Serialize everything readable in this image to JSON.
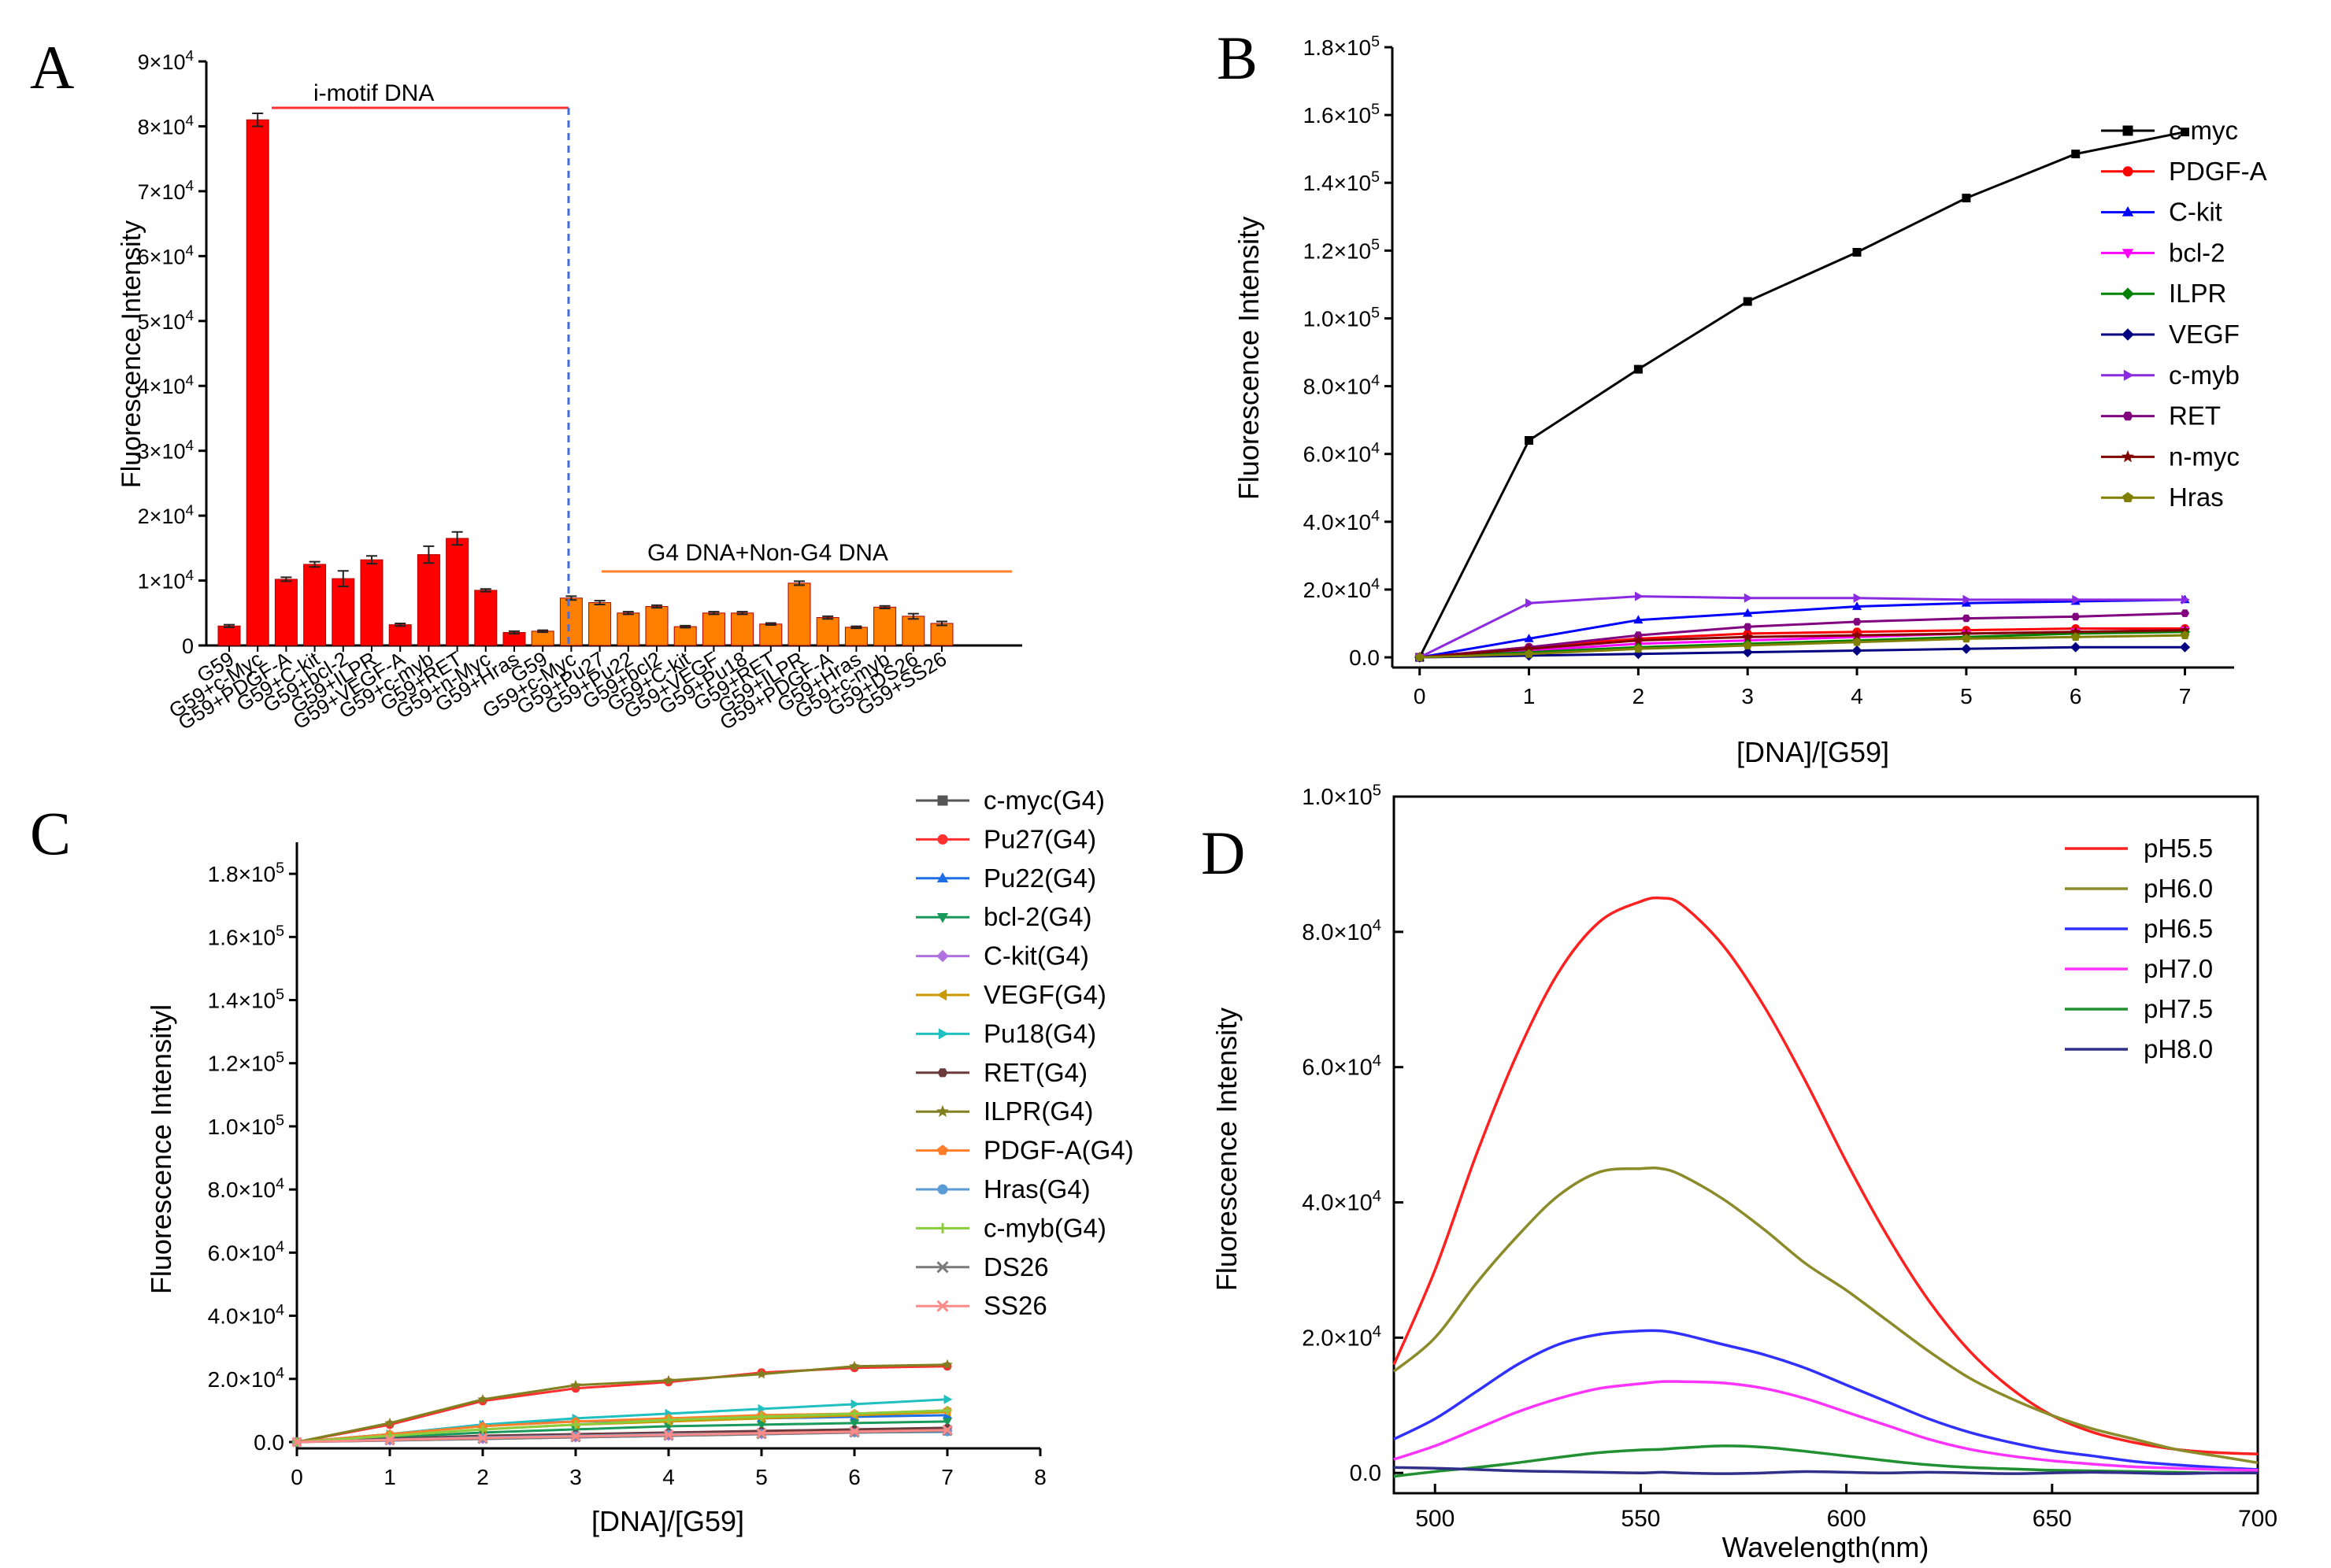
{
  "panel_labels": [
    "A",
    "B",
    "C",
    "D"
  ],
  "colors": {
    "red_bar": "#ff0000",
    "orange_bar": "#ff8000",
    "line_red": "#ff3030",
    "line_orange": "#ff7f2a",
    "dashed_blue": "#3f6fe0"
  },
  "chart_data": [
    {
      "id": "A",
      "type": "bar",
      "ylabel": "Fluorescence Intensity",
      "ylim": [
        0,
        90000
      ],
      "yticks": [
        {
          "v": 0,
          "label": "0"
        },
        {
          "v": 10000,
          "label": "1×10⁴"
        },
        {
          "v": 20000,
          "label": "2×10⁴"
        },
        {
          "v": 30000,
          "label": "3×10⁴"
        },
        {
          "v": 40000,
          "label": "4×10⁴"
        },
        {
          "v": 50000,
          "label": "5×10⁴"
        },
        {
          "v": 60000,
          "label": "6×10⁴"
        },
        {
          "v": 70000,
          "label": "7×10⁴"
        },
        {
          "v": 80000,
          "label": "8×10⁴"
        },
        {
          "v": 90000,
          "label": "9×10⁴"
        }
      ],
      "annotations": [
        "i-motif DNA",
        "G4 DNA+Non-G4 DNA"
      ],
      "groups": [
        {
          "name": "i-motif DNA",
          "color": "#ff0000",
          "categories": [
            "G59",
            "G59+c-Myc",
            "G59+PDGF-A",
            "G59+C-kit",
            "G59+bcl-2",
            "G59+ILPR",
            "G59+VEGF-A",
            "G59+c-myb",
            "G59+RET",
            "G59+n-Myc",
            "G59+Hras"
          ],
          "values": [
            3000,
            81000,
            10200,
            12500,
            10300,
            13200,
            3200,
            14000,
            16500,
            8500,
            2000
          ],
          "errors": [
            200,
            1000,
            300,
            400,
            1200,
            600,
            200,
            1300,
            1000,
            200,
            200
          ]
        },
        {
          "name": "G4 DNA+Non-G4 DNA",
          "color": "#ff8000",
          "categories": [
            "G59",
            "G59+c-Myc",
            "G59+Pu27",
            "G59+Pu22",
            "G59+bcl2",
            "G59+C-kit",
            "G59+VEGF",
            "G59+Pu18",
            "G59+RET",
            "G59+ILPR",
            "G59+PDGF-A",
            "G59+Hras",
            "G59+c-myb",
            "G59+DS26",
            "G59+SS26"
          ],
          "values": [
            2200,
            7300,
            6600,
            5000,
            6000,
            2900,
            5000,
            5000,
            3300,
            9600,
            4300,
            2800,
            5900,
            4500,
            3400
          ],
          "errors": [
            150,
            300,
            300,
            200,
            200,
            150,
            200,
            200,
            150,
            300,
            200,
            150,
            200,
            400,
            300
          ]
        }
      ]
    },
    {
      "id": "B",
      "type": "line",
      "xlabel": "[DNA]/[G59]",
      "ylabel": "Fluorescence Intensity",
      "x": [
        0,
        1,
        2,
        3,
        4,
        5,
        6,
        7
      ],
      "xlim": [
        -0.25,
        7.45
      ],
      "ylim": [
        -3000,
        180000
      ],
      "xticks": [
        "0",
        "1",
        "2",
        "3",
        "4",
        "5",
        "6",
        "7"
      ],
      "yticks": [
        {
          "v": 0,
          "label": "0.0"
        },
        {
          "v": 20000,
          "label": "2.0×10⁴"
        },
        {
          "v": 40000,
          "label": "4.0×10⁴"
        },
        {
          "v": 60000,
          "label": "6.0×10⁴"
        },
        {
          "v": 80000,
          "label": "8.0×10⁴"
        },
        {
          "v": 100000,
          "label": "1.0×10⁵"
        },
        {
          "v": 120000,
          "label": "1.2×10⁵"
        },
        {
          "v": 140000,
          "label": "1.4×10⁵"
        },
        {
          "v": 160000,
          "label": "1.6×10⁵"
        },
        {
          "v": 180000,
          "label": "1.8×10⁵"
        }
      ],
      "series": [
        {
          "name": "c-myc",
          "color": "#000000",
          "marker": "square",
          "values": [
            0,
            64000,
            85000,
            105000,
            119500,
            135500,
            148500,
            155000
          ]
        },
        {
          "name": "PDGF-A",
          "color": "#ff0000",
          "marker": "circle",
          "values": [
            0,
            3000,
            5500,
            7000,
            7500,
            8000,
            8500,
            8500
          ]
        },
        {
          "name": "C-kit",
          "color": "#0000ff",
          "marker": "triangle-up",
          "values": [
            0,
            5500,
            11000,
            13000,
            15000,
            16000,
            16500,
            17000
          ]
        },
        {
          "name": "bcl-2",
          "color": "#ff00ff",
          "marker": "triangle-down",
          "values": [
            0,
            2000,
            4000,
            5000,
            6000,
            7000,
            7500,
            8000
          ]
        },
        {
          "name": "ILPR",
          "color": "#008000",
          "marker": "diamond",
          "values": [
            0,
            1500,
            3000,
            4000,
            5000,
            6000,
            7000,
            7500
          ]
        },
        {
          "name": "VEGF",
          "color": "#000080",
          "marker": "diamond",
          "values": [
            0,
            500,
            1000,
            1500,
            2000,
            2500,
            3000,
            3000
          ]
        },
        {
          "name": "c-myb",
          "color": "#8a2be2",
          "marker": "triangle-right",
          "values": [
            0,
            16000,
            18000,
            17500,
            17500,
            17000,
            17000,
            17000
          ]
        },
        {
          "name": "RET",
          "color": "#800080",
          "marker": "hexagon",
          "values": [
            0,
            3000,
            6500,
            9000,
            10500,
            11500,
            12000,
            13000
          ]
        },
        {
          "name": "n-myc",
          "color": "#800000",
          "marker": "star",
          "values": [
            0,
            2500,
            5000,
            6000,
            6500,
            7000,
            7500,
            8000
          ]
        },
        {
          "name": "Hras",
          "color": "#808000",
          "marker": "pentagon",
          "values": [
            0,
            1000,
            2500,
            3500,
            4500,
            5500,
            6000,
            6500
          ]
        }
      ]
    },
    {
      "id": "C",
      "type": "line",
      "xlabel": "[DNA]/[G59]",
      "ylabel": "Fluorescence Intensityl",
      "x": [
        0,
        1,
        2,
        3,
        4,
        5,
        6,
        7
      ],
      "xlim": [
        0,
        8
      ],
      "ylim": [
        -2000,
        190000
      ],
      "xticks": [
        "0",
        "1",
        "2",
        "3",
        "4",
        "5",
        "6",
        "7",
        "8"
      ],
      "yticks": [
        {
          "v": 0,
          "label": "0.0"
        },
        {
          "v": 20000,
          "label": "2.0×10⁴"
        },
        {
          "v": 40000,
          "label": "4.0×10⁴"
        },
        {
          "v": 60000,
          "label": "6.0×10⁴"
        },
        {
          "v": 80000,
          "label": "8.0×10⁴"
        },
        {
          "v": 100000,
          "label": "1.0×10⁵"
        },
        {
          "v": 120000,
          "label": "1.2×10⁵"
        },
        {
          "v": 140000,
          "label": "1.4×10⁵"
        },
        {
          "v": 160000,
          "label": "1.6×10⁵"
        },
        {
          "v": 180000,
          "label": "1.8×10⁵"
        }
      ],
      "series": [
        {
          "name": "c-myc(G4)",
          "color": "#555555",
          "marker": "square",
          "values": [
            0,
            1000,
            1500,
            2000,
            2500,
            3000,
            3500,
            4000
          ]
        },
        {
          "name": "Pu27(G4)",
          "color": "#ff3030",
          "marker": "circle",
          "values": [
            0,
            5500,
            13000,
            17000,
            19000,
            22000,
            23500,
            24000
          ]
        },
        {
          "name": "Pu22(G4)",
          "color": "#1e6ee6",
          "marker": "triangle-up",
          "values": [
            0,
            2500,
            5500,
            6500,
            7000,
            7500,
            8000,
            8500
          ]
        },
        {
          "name": "bcl-2(G4)",
          "color": "#1a9a5a",
          "marker": "triangle-down",
          "values": [
            0,
            1500,
            3000,
            4000,
            5000,
            5500,
            6000,
            6500
          ]
        },
        {
          "name": "C-kit(G4)",
          "color": "#b070e0",
          "marker": "diamond",
          "values": [
            0,
            500,
            1000,
            1500,
            2000,
            2500,
            3000,
            3500
          ]
        },
        {
          "name": "VEGF(G4)",
          "color": "#cc9900",
          "marker": "triangle-left",
          "values": [
            0,
            2000,
            4000,
            5500,
            6500,
            7500,
            8500,
            9500
          ]
        },
        {
          "name": "Pu18(G4)",
          "color": "#20c0c0",
          "marker": "triangle-right",
          "values": [
            0,
            2500,
            5500,
            7500,
            9000,
            10500,
            12000,
            13500
          ]
        },
        {
          "name": "RET(G4)",
          "color": "#6b3a3a",
          "marker": "hexagon",
          "values": [
            0,
            1000,
            2000,
            2500,
            3000,
            3500,
            4000,
            4500
          ]
        },
        {
          "name": "ILPR(G4)",
          "color": "#808020",
          "marker": "star",
          "values": [
            0,
            6000,
            13500,
            18000,
            19500,
            21500,
            24000,
            24500
          ]
        },
        {
          "name": "PDGF-A(G4)",
          "color": "#ff7f2a",
          "marker": "pentagon",
          "values": [
            0,
            2500,
            5000,
            6500,
            7500,
            8500,
            9000,
            10000
          ]
        },
        {
          "name": "Hras(G4)",
          "color": "#5b9bd5",
          "marker": "circle",
          "values": [
            0,
            800,
            1500,
            2000,
            2500,
            2800,
            3000,
            3200
          ]
        },
        {
          "name": "c-myb(G4)",
          "color": "#8acd3c",
          "marker": "plus",
          "values": [
            0,
            2000,
            4000,
            5500,
            7000,
            8000,
            9000,
            10000
          ]
        },
        {
          "name": "DS26",
          "color": "#7a7a7a",
          "marker": "x",
          "values": [
            0,
            500,
            1000,
            1500,
            2000,
            2500,
            3000,
            3500
          ]
        },
        {
          "name": "SS26",
          "color": "#ff8a8a",
          "marker": "x",
          "values": [
            0,
            700,
            1300,
            1800,
            2300,
            2800,
            3300,
            3800
          ]
        }
      ]
    },
    {
      "id": "D",
      "type": "line",
      "xlabel": "Wavelength(nm)",
      "ylabel": "Fluorescence Intensity",
      "xlim": [
        490,
        700
      ],
      "ylim": [
        -3000,
        100000
      ],
      "xticks": [
        500,
        550,
        600,
        650,
        700
      ],
      "yticks": [
        {
          "v": 0,
          "label": "0.0"
        },
        {
          "v": 20000,
          "label": "2.0×10⁴"
        },
        {
          "v": 40000,
          "label": "4.0×10⁴"
        },
        {
          "v": 60000,
          "label": "6.0×10⁴"
        },
        {
          "v": 80000,
          "label": "8.0×10⁴"
        },
        {
          "v": 100000,
          "label": "1.0×10⁵"
        }
      ],
      "series": [
        {
          "name": "pH5.5",
          "color": "#ff2020",
          "x": [
            490,
            500,
            510,
            520,
            530,
            540,
            550,
            555,
            560,
            570,
            580,
            590,
            600,
            610,
            620,
            630,
            640,
            650,
            660,
            670,
            680,
            690,
            700
          ],
          "values": [
            16000,
            30000,
            47000,
            62000,
            74000,
            81500,
            84500,
            85000,
            84000,
            78000,
            69000,
            58000,
            46000,
            35000,
            25500,
            18000,
            12500,
            8500,
            6000,
            4500,
            3500,
            3000,
            2800
          ]
        },
        {
          "name": "pH6.0",
          "color": "#8b8b2a",
          "x": [
            490,
            500,
            510,
            520,
            530,
            540,
            550,
            555,
            560,
            570,
            580,
            590,
            600,
            610,
            620,
            630,
            640,
            650,
            660,
            670,
            680,
            690,
            700
          ],
          "values": [
            15000,
            20000,
            28000,
            35000,
            41000,
            44500,
            45000,
            45000,
            44000,
            40500,
            36000,
            31000,
            27000,
            22500,
            18000,
            14000,
            11000,
            8500,
            6500,
            5000,
            3500,
            2500,
            1500
          ]
        },
        {
          "name": "pH6.5",
          "color": "#3030ff",
          "x": [
            490,
            500,
            510,
            520,
            530,
            540,
            550,
            555,
            560,
            570,
            580,
            590,
            600,
            610,
            620,
            630,
            640,
            650,
            660,
            670,
            680,
            690,
            700
          ],
          "values": [
            5000,
            8000,
            12000,
            16000,
            19000,
            20500,
            21000,
            21000,
            20500,
            19000,
            17500,
            15500,
            13000,
            10500,
            8000,
            6000,
            4500,
            3300,
            2500,
            1700,
            1200,
            800,
            500
          ]
        },
        {
          "name": "pH7.0",
          "color": "#ff33ff",
          "x": [
            490,
            500,
            510,
            520,
            530,
            540,
            550,
            555,
            560,
            570,
            580,
            590,
            600,
            610,
            620,
            630,
            640,
            650,
            660,
            670,
            680,
            690,
            700
          ],
          "values": [
            2000,
            4000,
            6500,
            9000,
            11000,
            12500,
            13200,
            13500,
            13500,
            13300,
            12500,
            11000,
            9000,
            7000,
            5000,
            3500,
            2500,
            1800,
            1300,
            900,
            700,
            500,
            400
          ]
        },
        {
          "name": "pH7.5",
          "color": "#209030",
          "x": [
            490,
            500,
            510,
            520,
            530,
            540,
            550,
            555,
            560,
            570,
            580,
            590,
            600,
            610,
            620,
            630,
            640,
            650,
            660,
            670,
            680,
            690,
            700
          ],
          "values": [
            -500,
            200,
            800,
            1500,
            2300,
            3000,
            3400,
            3500,
            3700,
            4000,
            3800,
            3200,
            2500,
            1800,
            1200,
            800,
            600,
            400,
            300,
            200,
            100,
            0,
            0
          ]
        },
        {
          "name": "pH8.0",
          "color": "#30308a",
          "x": [
            490,
            500,
            510,
            520,
            530,
            540,
            550,
            555,
            560,
            570,
            580,
            590,
            600,
            610,
            620,
            630,
            640,
            650,
            660,
            670,
            680,
            690,
            700
          ],
          "values": [
            800,
            700,
            500,
            300,
            200,
            100,
            0,
            100,
            0,
            -100,
            0,
            200,
            100,
            0,
            100,
            0,
            -100,
            0,
            100,
            0,
            -100,
            0,
            0
          ]
        }
      ]
    }
  ]
}
